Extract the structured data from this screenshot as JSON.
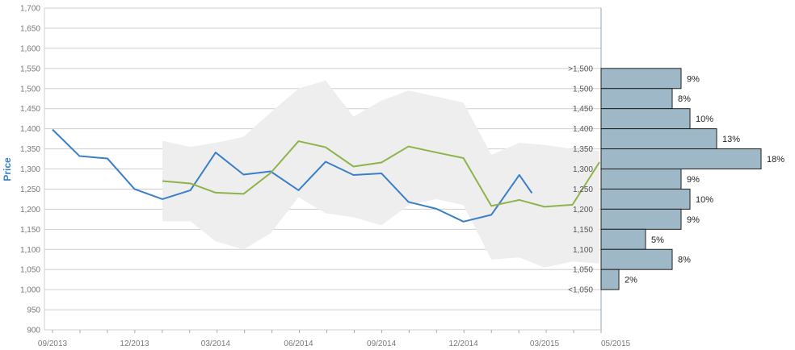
{
  "colors": {
    "actual": "#3a7fc8",
    "forecast": "#8db34b",
    "band": "#eeeeee",
    "grid": "#cfcfcf",
    "bar_fill": "#9fb8c7",
    "bar_stroke": "#1f1f1f",
    "axis_label": "#3a7fc8"
  },
  "chart_data": {
    "type": "line",
    "ylabel": "Price",
    "ylim": [
      900,
      1700
    ],
    "yticks": [
      "900",
      "950",
      "1,000",
      "1,050",
      "1,100",
      "1,150",
      "1,200",
      "1,250",
      "1,300",
      "1,350",
      "1,400",
      "1,450",
      "1,500",
      "1,550",
      "1,600",
      "1,650",
      "1,700"
    ],
    "xticks": [
      "09/2013",
      "12/2013",
      "03/2014",
      "06/2014",
      "09/2014",
      "12/2014",
      "03/2015",
      "05/2015"
    ],
    "x_range": [
      "2013-09",
      "2015-05"
    ],
    "grid": true,
    "series": [
      {
        "key": "actual",
        "x": [
          "2013-09",
          "2013-10",
          "2013-11",
          "2013-12",
          "2014-01",
          "2014-02",
          "2014-03",
          "2014-04",
          "2014-05",
          "2014-06",
          "2014-07",
          "2014-08",
          "2014-09",
          "2014-10",
          "2014-11",
          "2014-12",
          "2015-01",
          "2015-02",
          "2015-02-15"
        ],
        "y": [
          1398,
          1332,
          1326,
          1250,
          1225,
          1247,
          1341,
          1286,
          1294,
          1247,
          1318,
          1285,
          1289,
          1218,
          1201,
          1169,
          1186,
          1285,
          1240
        ]
      },
      {
        "key": "forecast",
        "x": [
          "2014-01",
          "2014-02",
          "2014-03",
          "2014-04",
          "2014-05",
          "2014-06",
          "2014-07",
          "2014-08",
          "2014-09",
          "2014-10",
          "2014-11",
          "2014-12",
          "2015-01",
          "2015-02",
          "2015-03",
          "2015-04",
          "2015-05"
        ],
        "y": [
          1270,
          1264,
          1241,
          1238,
          1290,
          1369,
          1354,
          1306,
          1316,
          1356,
          1341,
          1327,
          1208,
          1223,
          1206,
          1211,
          1317
        ]
      }
    ],
    "forecast_band": {
      "x": [
        "2014-01",
        "2014-02",
        "2014-03",
        "2014-04",
        "2014-05",
        "2014-06",
        "2014-07",
        "2014-08",
        "2014-09",
        "2014-10",
        "2014-11",
        "2014-12",
        "2015-01",
        "2015-02",
        "2015-03",
        "2015-04",
        "2015-05"
      ],
      "upper": [
        1370,
        1355,
        1365,
        1380,
        1440,
        1500,
        1520,
        1430,
        1470,
        1495,
        1480,
        1465,
        1335,
        1365,
        1360,
        1350,
        1345
      ],
      "lower": [
        1170,
        1170,
        1120,
        1100,
        1140,
        1230,
        1190,
        1180,
        1160,
        1210,
        1225,
        1210,
        1075,
        1080,
        1055,
        1070,
        1065
      ]
    },
    "distribution": {
      "type": "bar",
      "orientation": "horizontal",
      "bins": [
        {
          "label": ">1,500",
          "from": 1500,
          "to": 1550,
          "percent": "9%",
          "value": 9
        },
        {
          "label": "1,500",
          "from": 1450,
          "to": 1500,
          "percent": "8%",
          "value": 8
        },
        {
          "label": "1,450",
          "from": 1400,
          "to": 1450,
          "percent": "10%",
          "value": 10
        },
        {
          "label": "1,400",
          "from": 1350,
          "to": 1400,
          "percent": "13%",
          "value": 13
        },
        {
          "label": "1,350",
          "from": 1300,
          "to": 1350,
          "percent": "18%",
          "value": 18
        },
        {
          "label": "1,300",
          "from": 1250,
          "to": 1300,
          "percent": "9%",
          "value": 9
        },
        {
          "label": "1,250",
          "from": 1200,
          "to": 1250,
          "percent": "10%",
          "value": 10
        },
        {
          "label": "1,200",
          "from": 1150,
          "to": 1200,
          "percent": "9%",
          "value": 9
        },
        {
          "label": "1,150",
          "from": 1100,
          "to": 1150,
          "percent": "5%",
          "value": 5
        },
        {
          "label": "1,100",
          "from": 1050,
          "to": 1100,
          "percent": "8%",
          "value": 8
        },
        {
          "label": "1,050",
          "from": 1000,
          "to": 1050,
          "percent": "2%",
          "value": 2
        },
        {
          "label": "<1,050",
          "from": 1000,
          "to": 1000,
          "percent": "",
          "value": 0
        }
      ]
    }
  }
}
